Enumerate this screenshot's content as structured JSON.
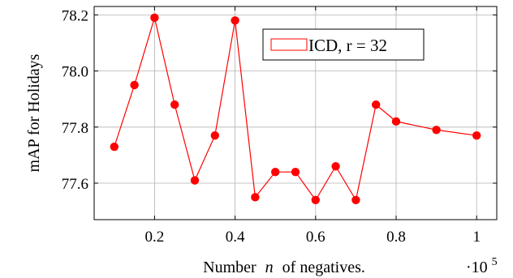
{
  "chart_data": {
    "type": "line",
    "title": "",
    "xlabel_prefix": "Number",
    "xlabel_var": "n",
    "xlabel_suffix": "of negatives.",
    "ylabel": "mAP for Holidays",
    "x_scale_note": "·10",
    "x_scale_exp": "5",
    "xlim": [
      0.05,
      1.05
    ],
    "ylim": [
      77.47,
      78.23
    ],
    "xticks": [
      0.2,
      0.4,
      0.6,
      0.8,
      1.0
    ],
    "xtick_labels": [
      "0.2",
      "0.4",
      "0.6",
      "0.8",
      "1"
    ],
    "yticks": [
      77.6,
      77.8,
      78.0,
      78.2
    ],
    "ytick_labels": [
      "77.6",
      "77.8",
      "78.0",
      "78.2"
    ],
    "grid": true,
    "legend_position": "top-right",
    "series": [
      {
        "name": "ICD, r = 32",
        "color": "#ff0000",
        "x": [
          0.1,
          0.15,
          0.2,
          0.25,
          0.3,
          0.35,
          0.4,
          0.45,
          0.5,
          0.55,
          0.6,
          0.65,
          0.7,
          0.75,
          0.8,
          0.9,
          1.0
        ],
        "y": [
          77.73,
          77.95,
          78.19,
          77.88,
          77.61,
          77.77,
          78.18,
          77.55,
          77.64,
          77.64,
          77.54,
          77.66,
          77.54,
          77.88,
          77.82,
          77.79,
          77.77
        ]
      }
    ]
  }
}
